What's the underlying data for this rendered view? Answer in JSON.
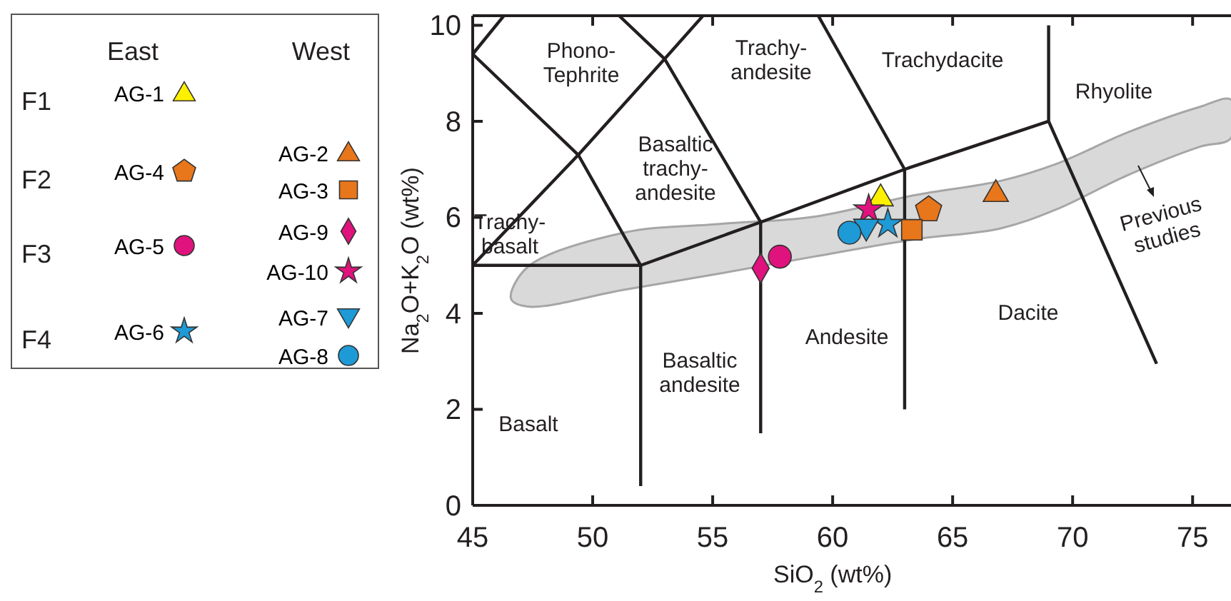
{
  "chart_data": {
    "type": "scatter",
    "xlabel": "SiO$_{2}$ (wt%)",
    "ylabel": "Na$_{2}$O+K$_{2}$O (wt%)",
    "xlim": [
      45,
      76.6
    ],
    "ylim": [
      0,
      10.2
    ],
    "xticks": [
      45,
      50,
      55,
      60,
      65,
      70,
      75
    ],
    "yticks": [
      0,
      2,
      4,
      6,
      8,
      10
    ],
    "legend": "left",
    "series": [
      {
        "type": "area",
        "color": "#d9d9d9",
        "x": [
          46.6,
          47.3,
          51.3,
          55.2,
          59.2,
          63.4,
          67.0,
          69.3,
          72.3,
          75.3,
          76.6,
          76.6,
          75.3,
          72.3,
          69.3,
          67.0,
          63.4,
          59.2,
          55.2,
          51.3,
          47.3
        ],
        "values": [
          4.3,
          4.97,
          5.68,
          5.86,
          6.01,
          6.46,
          6.76,
          7.11,
          7.77,
          8.3,
          8.45,
          7.65,
          7.47,
          6.88,
          6.16,
          5.77,
          5.54,
          5.18,
          4.82,
          4.49,
          4.14
        ]
      },
      {
        "type": "line",
        "color": "#231f20",
        "x": [
          45,
          52,
          57,
          63,
          69
        ],
        "values": [
          5,
          5,
          5.9,
          7,
          8
        ]
      },
      {
        "type": "line",
        "color": "#231f20",
        "x": [
          52,
          52
        ],
        "values": [
          0.4,
          5
        ]
      },
      {
        "type": "line",
        "color": "#231f20",
        "x": [
          57,
          57
        ],
        "values": [
          1.5,
          5.9
        ]
      },
      {
        "type": "line",
        "color": "#231f20",
        "x": [
          63,
          63
        ],
        "values": [
          2,
          7
        ]
      },
      {
        "type": "line",
        "color": "#231f20",
        "x": [
          69,
          69,
          73.5
        ],
        "values": [
          10,
          8,
          2.95
        ]
      },
      {
        "type": "line",
        "color": "#231f20",
        "x": [
          52,
          49.4,
          45
        ],
        "values": [
          5,
          7.3,
          9.4
        ]
      },
      {
        "type": "line",
        "color": "#231f20",
        "x": [
          45,
          49.4,
          53,
          54.6
        ],
        "values": [
          5,
          7.3,
          9.3,
          10.2
        ]
      },
      {
        "type": "line",
        "color": "#231f20",
        "x": [
          45,
          46.3
        ],
        "values": [
          9.4,
          10.2
        ]
      },
      {
        "type": "line",
        "color": "#231f20",
        "x": [
          57,
          53,
          51.1
        ],
        "values": [
          5.9,
          9.3,
          10.2
        ]
      },
      {
        "type": "line",
        "color": "#231f20",
        "x": [
          63,
          59.4
        ],
        "values": [
          7,
          10.2
        ]
      },
      {
        "name": "AG-1",
        "marker": "triangle",
        "color": "#fff000",
        "x": [
          62.0
        ],
        "values": [
          6.43
        ]
      },
      {
        "name": "AG-4",
        "color": "#e8761b",
        "x": [
          64.0
        ],
        "values": [
          6.16
        ]
      },
      {
        "name": "AG-5",
        "marker": "circle",
        "color": "#e0127d",
        "x": [
          57.8
        ],
        "values": [
          5.18
        ]
      },
      {
        "name": "AG-6",
        "marker": "star",
        "color": "#1e9ad6",
        "x": [
          62.3
        ],
        "values": [
          5.86
        ]
      },
      {
        "name": "AG-2",
        "marker": "triangle",
        "color": "#e8761b",
        "x": [
          66.8
        ],
        "values": [
          6.52
        ]
      },
      {
        "name": "AG-3",
        "marker": "square",
        "color": "#e8761b",
        "x": [
          63.3
        ],
        "values": [
          5.74
        ]
      },
      {
        "name": "AG-9",
        "marker": "diamond",
        "color": "#e0127d",
        "x": [
          57.0
        ],
        "values": [
          4.94
        ]
      },
      {
        "name": "AG-10",
        "marker": "star",
        "color": "#e0127d",
        "x": [
          61.5
        ],
        "values": [
          6.16
        ]
      },
      {
        "name": "AG-7",
        "marker": "triangle-down",
        "color": "#1e9ad6",
        "x": [
          61.4
        ],
        "values": [
          5.77
        ]
      },
      {
        "name": "AG-8",
        "marker": "circle",
        "color": "#1e9ad6",
        "x": [
          60.7
        ],
        "values": [
          5.68
        ]
      }
    ],
    "annotations": [
      "East",
      "West",
      "F1",
      "F2",
      "F3",
      "F4",
      "Phono-\nTephrite",
      "Trachy-\nandesite",
      "Trachydacite",
      "Rhyolite",
      "Basaltic\ntrachy-\nandesite",
      "Trachy-\nbasalt",
      "Basalt",
      "Basaltic\nandesite",
      "Andesite",
      "Dacite",
      "Previous\nstudies"
    ]
  }
}
